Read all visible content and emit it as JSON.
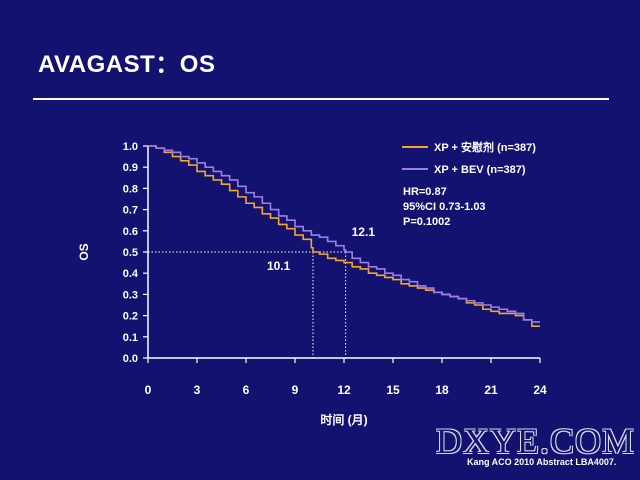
{
  "slide": {
    "title": "AVAGAST：OS",
    "watermark": "DXYE.COM",
    "footnote": "Kang ACO 2010 Abstract LBA4007."
  },
  "chart_data": {
    "type": "line",
    "title": "",
    "xlabel": "时间 (月)",
    "ylabel": "OS",
    "xlim": [
      0,
      24
    ],
    "ylim": [
      0,
      1
    ],
    "xticks": [
      "0",
      "3",
      "6",
      "9",
      "12",
      "15",
      "18",
      "21",
      "24"
    ],
    "xtick_values": [
      0,
      3,
      6,
      9,
      12,
      15,
      18,
      21,
      24
    ],
    "yticks": [
      "0.0",
      "0.1",
      "0.2",
      "0.3",
      "0.4",
      "0.5",
      "0.6",
      "0.7",
      "0.8",
      "0.9",
      "1.0"
    ],
    "ytick_values": [
      0,
      0.1,
      0.2,
      0.3,
      0.4,
      0.5,
      0.6,
      0.7,
      0.8,
      0.9,
      1.0
    ],
    "grid": false,
    "legend_position": "top-right",
    "series": [
      {
        "name": "XP + 安慰剂 (n=387)",
        "color": "#f5a623",
        "x": [
          0,
          0.5,
          1,
          1.5,
          2,
          2.5,
          3,
          3.5,
          4,
          4.5,
          5,
          5.5,
          6,
          6.5,
          7,
          7.5,
          8,
          8.5,
          9,
          9.5,
          10,
          10.1,
          10.5,
          11,
          11.5,
          12,
          12.5,
          13,
          13.5,
          14,
          14.5,
          15,
          15.5,
          16,
          16.5,
          17,
          17.5,
          18,
          18.5,
          19,
          19.5,
          20,
          20.5,
          21,
          21.5,
          22,
          22.5,
          23,
          23.5,
          24
        ],
        "y": [
          1.0,
          0.99,
          0.97,
          0.95,
          0.93,
          0.91,
          0.88,
          0.86,
          0.84,
          0.82,
          0.79,
          0.76,
          0.73,
          0.71,
          0.68,
          0.66,
          0.63,
          0.61,
          0.58,
          0.56,
          0.52,
          0.5,
          0.49,
          0.47,
          0.46,
          0.45,
          0.43,
          0.42,
          0.4,
          0.39,
          0.38,
          0.37,
          0.35,
          0.34,
          0.33,
          0.32,
          0.31,
          0.3,
          0.29,
          0.28,
          0.26,
          0.25,
          0.23,
          0.22,
          0.21,
          0.21,
          0.2,
          0.18,
          0.15,
          0.15
        ]
      },
      {
        "name": "XP + BEV (n=387)",
        "color": "#9b7fe6",
        "x": [
          0,
          0.5,
          1,
          1.5,
          2,
          2.5,
          3,
          3.5,
          4,
          4.5,
          5,
          5.5,
          6,
          6.5,
          7,
          7.5,
          8,
          8.5,
          9,
          9.5,
          10,
          10.5,
          11,
          11.5,
          12,
          12.1,
          12.5,
          13,
          13.5,
          14,
          14.5,
          15,
          15.5,
          16,
          16.5,
          17,
          17.5,
          18,
          18.5,
          19,
          19.5,
          20,
          20.5,
          21,
          21.5,
          22,
          22.5,
          23,
          23.5,
          24
        ],
        "y": [
          1.0,
          0.99,
          0.98,
          0.97,
          0.95,
          0.94,
          0.92,
          0.9,
          0.88,
          0.86,
          0.84,
          0.81,
          0.78,
          0.76,
          0.73,
          0.7,
          0.67,
          0.65,
          0.62,
          0.6,
          0.58,
          0.57,
          0.55,
          0.53,
          0.51,
          0.5,
          0.47,
          0.45,
          0.43,
          0.42,
          0.4,
          0.39,
          0.37,
          0.36,
          0.34,
          0.33,
          0.31,
          0.3,
          0.29,
          0.28,
          0.27,
          0.26,
          0.25,
          0.24,
          0.23,
          0.22,
          0.21,
          0.18,
          0.17,
          0.17
        ]
      }
    ],
    "annotations": {
      "stats": [
        "HR=0.87",
        "95%CI 0.73-1.03",
        "P=0.1002"
      ],
      "median_placebo": {
        "label": "10.1",
        "x": 10.1,
        "y": 0.5
      },
      "median_bev": {
        "label": "12.1",
        "x": 12.1,
        "y": 0.5
      }
    }
  }
}
